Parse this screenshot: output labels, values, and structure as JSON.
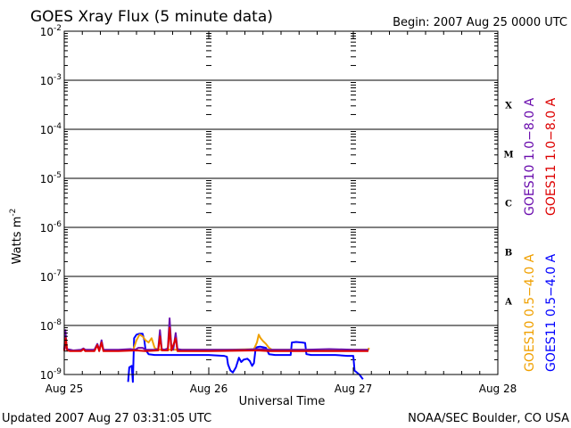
{
  "chart_data": {
    "type": "line",
    "title": "GOES Xray Flux (5 minute data)",
    "begin_label": "Begin:  2007 Aug 25 0000 UTC",
    "xlabel": "Universal Time",
    "ylabel": "Watts m",
    "ylabel_sup": "-2",
    "y_scale": "log",
    "ylim": [
      1e-09,
      0.01
    ],
    "y_ticks": [
      {
        "base": "10",
        "exp": "-2",
        "value": 0.01
      },
      {
        "base": "10",
        "exp": "-3",
        "value": 0.001
      },
      {
        "base": "10",
        "exp": "-4",
        "value": 0.0001
      },
      {
        "base": "10",
        "exp": "-5",
        "value": 1e-05
      },
      {
        "base": "10",
        "exp": "-6",
        "value": 1e-06
      },
      {
        "base": "10",
        "exp": "-7",
        "value": 1e-07
      },
      {
        "base": "10",
        "exp": "-8",
        "value": 1e-08
      },
      {
        "base": "10",
        "exp": "-9",
        "value": 1e-09
      }
    ],
    "xlim_hours": [
      0,
      72
    ],
    "x_ticks": [
      {
        "label": "Aug 25",
        "hour": 0
      },
      {
        "label": "Aug 26",
        "hour": 24
      },
      {
        "label": "Aug 27",
        "hour": 48
      },
      {
        "label": "Aug 28",
        "hour": 72
      }
    ],
    "flare_classes": [
      {
        "label": "X",
        "value": 0.0001
      },
      {
        "label": "M",
        "value": 1e-05
      },
      {
        "label": "C",
        "value": 1e-06
      },
      {
        "label": "B",
        "value": 1e-07
      },
      {
        "label": "A",
        "value": 1e-08
      }
    ],
    "grid": "horizontal lines at each decade; dashed vertical day separators",
    "legend_placement": "right, rotated vertically",
    "series": [
      {
        "name": "GOES10 1.0−8.0 A",
        "color": "#6a0dad",
        "points": [
          [
            0.0,
            3.2e-09
          ],
          [
            0.2,
            8e-09
          ],
          [
            0.4,
            3.3e-09
          ],
          [
            1.0,
            3.2e-09
          ],
          [
            1.5,
            3.1e-09
          ],
          [
            2.8,
            3.2e-09
          ],
          [
            3.2,
            3.4e-09
          ],
          [
            3.5,
            3.2e-09
          ],
          [
            5.0,
            3.2e-09
          ],
          [
            5.5,
            4.2e-09
          ],
          [
            5.8,
            3.2e-09
          ],
          [
            5.9,
            3.4e-09
          ],
          [
            6.2,
            5e-09
          ],
          [
            6.5,
            3.2e-09
          ],
          [
            9.0,
            3.2e-09
          ],
          [
            11.0,
            3.3e-09
          ],
          [
            11.6,
            3.2e-09
          ],
          [
            12.0,
            3.3e-09
          ],
          [
            12.3,
            3.5e-09
          ],
          [
            13.0,
            3.5e-09
          ],
          [
            13.5,
            3.2e-09
          ],
          [
            15.0,
            3.2e-09
          ],
          [
            15.6,
            3.3e-09
          ],
          [
            15.9,
            8e-09
          ],
          [
            16.2,
            3.3e-09
          ],
          [
            16.6,
            3.2e-09
          ],
          [
            17.2,
            3.4e-09
          ],
          [
            17.5,
            1.4e-08
          ],
          [
            17.8,
            3.3e-09
          ],
          [
            18.1,
            3.2e-09
          ],
          [
            18.5,
            7e-09
          ],
          [
            18.8,
            3.3e-09
          ],
          [
            19.5,
            3.2e-09
          ],
          [
            24.0,
            3.2e-09
          ],
          [
            30.0,
            3.2e-09
          ],
          [
            32.0,
            3.3e-09
          ],
          [
            33.0,
            3.3e-09
          ],
          [
            34.0,
            3.2e-09
          ],
          [
            40.0,
            3.2e-09
          ],
          [
            44.0,
            3.3e-09
          ],
          [
            48.0,
            3.2e-09
          ],
          [
            50.5,
            3.2e-09
          ]
        ]
      },
      {
        "name": "GOES11 1.0−8.0 A",
        "color": "#dd0000",
        "points": [
          [
            0.0,
            3e-09
          ],
          [
            0.25,
            5.5e-09
          ],
          [
            0.5,
            3.1e-09
          ],
          [
            1.0,
            3e-09
          ],
          [
            2.8,
            3e-09
          ],
          [
            3.2,
            3.3e-09
          ],
          [
            3.5,
            3e-09
          ],
          [
            5.0,
            3e-09
          ],
          [
            5.5,
            4e-09
          ],
          [
            5.8,
            3e-09
          ],
          [
            6.2,
            4.5e-09
          ],
          [
            6.5,
            3e-09
          ],
          [
            9.0,
            3e-09
          ],
          [
            12.0,
            3.1e-09
          ],
          [
            13.5,
            3e-09
          ],
          [
            15.6,
            3.1e-09
          ],
          [
            15.9,
            6e-09
          ],
          [
            16.2,
            3.1e-09
          ],
          [
            17.2,
            3.1e-09
          ],
          [
            17.5,
            9e-09
          ],
          [
            17.8,
            3.1e-09
          ],
          [
            18.5,
            5.5e-09
          ],
          [
            18.8,
            3e-09
          ],
          [
            24.0,
            3e-09
          ],
          [
            32.0,
            3.1e-09
          ],
          [
            34.0,
            3e-09
          ],
          [
            44.0,
            3e-09
          ],
          [
            48.0,
            3e-09
          ],
          [
            50.5,
            3e-09
          ]
        ]
      },
      {
        "name": "GOES10 0.5−4.0 A",
        "color": "#f0a000",
        "points": [
          [
            11.5,
            3.3e-09
          ],
          [
            12.0,
            5e-09
          ],
          [
            12.5,
            6.5e-09
          ],
          [
            13.0,
            6e-09
          ],
          [
            13.5,
            5e-09
          ],
          [
            14.0,
            4.5e-09
          ],
          [
            14.5,
            5.5e-09
          ],
          [
            15.0,
            3.5e-09
          ],
          [
            15.5,
            3.2e-09
          ],
          [
            27.0,
            3.2e-09
          ],
          [
            31.5,
            3.3e-09
          ],
          [
            32.0,
            4.5e-09
          ],
          [
            32.3,
            6.5e-09
          ],
          [
            32.6,
            5.5e-09
          ],
          [
            33.0,
            4.8e-09
          ],
          [
            33.5,
            4.2e-09
          ],
          [
            34.0,
            3.5e-09
          ],
          [
            34.5,
            3.2e-09
          ],
          [
            50.5,
            3.2e-09
          ],
          [
            50.6,
            3.5e-09
          ]
        ]
      },
      {
        "name": "GOES11 0.5−4.0 A",
        "color": "#0000ff",
        "points": [
          [
            10.6,
            5e-10
          ],
          [
            10.8,
            1.4e-09
          ],
          [
            11.2,
            1.5e-09
          ],
          [
            11.4,
            5e-10
          ],
          [
            11.6,
            5.5e-09
          ],
          [
            12.0,
            6.5e-09
          ],
          [
            12.5,
            6.8e-09
          ],
          [
            13.0,
            6.8e-09
          ],
          [
            13.3,
            5e-09
          ],
          [
            13.5,
            3.2e-09
          ],
          [
            14.0,
            2.6e-09
          ],
          [
            15.0,
            2.5e-09
          ],
          [
            20.0,
            2.5e-09
          ],
          [
            24.0,
            2.5e-09
          ],
          [
            26.5,
            2.4e-09
          ],
          [
            27.0,
            2.3e-09
          ],
          [
            27.2,
            1.6e-09
          ],
          [
            27.6,
            1.2e-09
          ],
          [
            28.0,
            1.1e-09
          ],
          [
            28.5,
            1.4e-09
          ],
          [
            29.0,
            2.2e-09
          ],
          [
            29.4,
            1.8e-09
          ],
          [
            29.8,
            2e-09
          ],
          [
            30.4,
            2.1e-09
          ],
          [
            30.8,
            1.9e-09
          ],
          [
            31.2,
            1.5e-09
          ],
          [
            31.5,
            1.7e-09
          ],
          [
            31.8,
            3.5e-09
          ],
          [
            32.0,
            3.6e-09
          ],
          [
            32.5,
            3.7e-09
          ],
          [
            33.0,
            3.6e-09
          ],
          [
            33.5,
            3.5e-09
          ],
          [
            34.0,
            2.6e-09
          ],
          [
            35.0,
            2.5e-09
          ],
          [
            37.6,
            2.5e-09
          ],
          [
            37.8,
            4.5e-09
          ],
          [
            38.5,
            4.6e-09
          ],
          [
            39.5,
            4.5e-09
          ],
          [
            40.0,
            4.4e-09
          ],
          [
            40.2,
            2.6e-09
          ],
          [
            41.0,
            2.5e-09
          ],
          [
            45.0,
            2.5e-09
          ],
          [
            47.0,
            2.4e-09
          ],
          [
            48.0,
            2.4e-09
          ],
          [
            48.2,
            1.2e-09
          ],
          [
            49.0,
            1e-09
          ],
          [
            49.6,
            8e-10
          ]
        ]
      }
    ]
  },
  "footer": {
    "updated": "Updated 2007 Aug 27 03:31:05 UTC",
    "credit": "NOAA/SEC Boulder, CO USA"
  }
}
